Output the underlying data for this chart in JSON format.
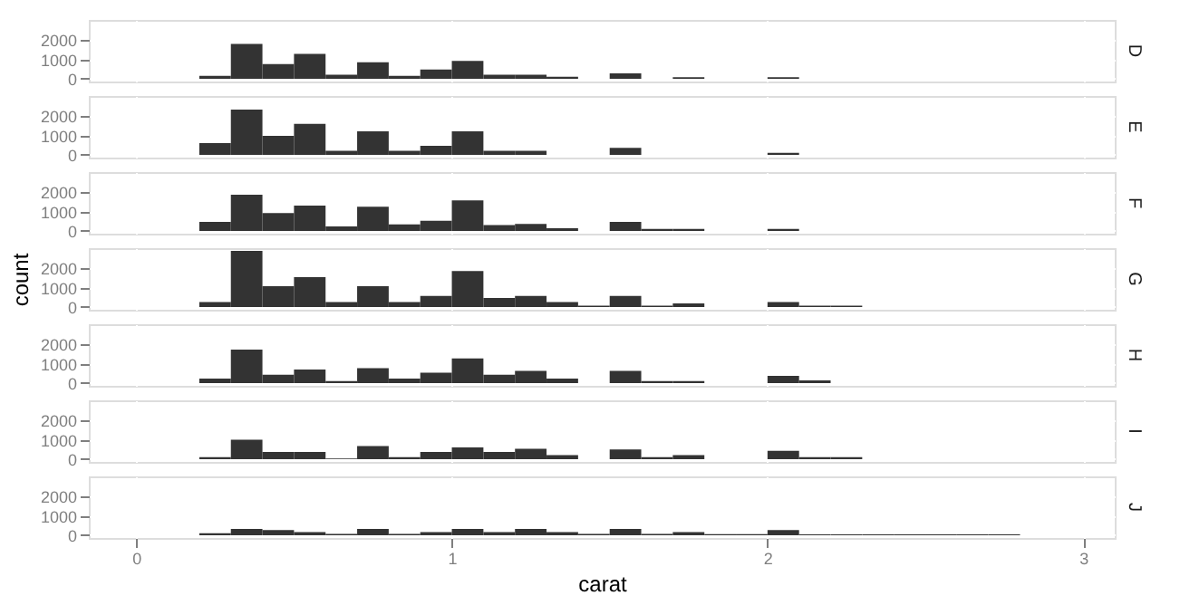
{
  "chart_data": [
    {
      "type": "histogram",
      "title": "D",
      "bins": [
        0.2,
        0.3,
        0.4,
        0.5,
        0.6,
        0.7,
        0.8,
        0.9,
        1.0,
        1.1,
        1.2,
        1.3,
        1.4,
        1.5,
        1.6,
        1.7,
        1.8,
        1.9,
        2.0,
        2.1,
        2.2,
        2.3,
        2.4,
        2.5,
        2.6,
        2.7,
        2.8
      ],
      "values": [
        150,
        1800,
        750,
        1280,
        200,
        850,
        150,
        480,
        920,
        200,
        200,
        100,
        0,
        280,
        0,
        80,
        0,
        0,
        80,
        0,
        0,
        0,
        0,
        0,
        0,
        0
      ],
      "color": "#333333",
      "xlim": [
        -0.15,
        3.1
      ],
      "xticks": [
        0,
        1,
        2,
        3
      ],
      "ylim": [
        -145,
        3035
      ],
      "yticks": [
        0,
        1000,
        2000
      ],
      "grid": true,
      "tick_labels": "y"
    },
    {
      "type": "histogram",
      "title": "E",
      "bins": [
        0.2,
        0.3,
        0.4,
        0.5,
        0.6,
        0.7,
        0.8,
        0.9,
        1.0,
        1.1,
        1.2,
        1.3,
        1.4,
        1.5,
        1.6,
        1.7,
        1.8,
        1.9,
        2.0,
        2.1,
        2.2,
        2.3,
        2.4,
        2.5,
        2.6,
        2.7,
        2.8
      ],
      "values": [
        600,
        2330,
        980,
        1600,
        200,
        1210,
        200,
        460,
        1210,
        200,
        200,
        0,
        0,
        360,
        0,
        0,
        0,
        0,
        100,
        0,
        0,
        0,
        0,
        0,
        0,
        0
      ],
      "color": "#333333",
      "xlim": [
        -0.15,
        3.1
      ],
      "xticks": [
        0,
        1,
        2,
        3
      ],
      "ylim": [
        -145,
        3035
      ],
      "yticks": [
        0,
        1000,
        2000
      ],
      "grid": true,
      "tick_labels": "y"
    },
    {
      "type": "histogram",
      "title": "F",
      "bins": [
        0.2,
        0.3,
        0.4,
        0.5,
        0.6,
        0.7,
        0.8,
        0.9,
        1.0,
        1.1,
        1.2,
        1.3,
        1.4,
        1.5,
        1.6,
        1.7,
        1.8,
        1.9,
        2.0,
        2.1,
        2.2,
        2.3,
        2.4,
        2.5,
        2.6,
        2.7,
        2.8
      ],
      "values": [
        460,
        1870,
        920,
        1310,
        230,
        1250,
        330,
        520,
        1570,
        300,
        360,
        130,
        0,
        460,
        100,
        100,
        0,
        0,
        100,
        0,
        0,
        0,
        0,
        0,
        0,
        0
      ],
      "color": "#333333",
      "xlim": [
        -0.15,
        3.1
      ],
      "xticks": [
        0,
        1,
        2,
        3
      ],
      "ylim": [
        -145,
        3035
      ],
      "yticks": [
        0,
        1000,
        2000
      ],
      "grid": true,
      "tick_labels": "y"
    },
    {
      "type": "histogram",
      "title": "G",
      "ylabel": "count",
      "bins": [
        0.2,
        0.3,
        0.4,
        0.5,
        0.6,
        0.7,
        0.8,
        0.9,
        1.0,
        1.1,
        1.2,
        1.3,
        1.4,
        1.5,
        1.6,
        1.7,
        1.8,
        1.9,
        2.0,
        2.1,
        2.2,
        2.3,
        2.4,
        2.5,
        2.6,
        2.7,
        2.8
      ],
      "values": [
        250,
        2890,
        1070,
        1540,
        250,
        1070,
        250,
        570,
        1860,
        460,
        570,
        250,
        70,
        570,
        70,
        180,
        0,
        0,
        250,
        70,
        70,
        0,
        0,
        0,
        0,
        0
      ],
      "color": "#333333",
      "xlim": [
        -0.15,
        3.1
      ],
      "xticks": [
        0,
        1,
        2,
        3
      ],
      "ylim": [
        -145,
        3035
      ],
      "yticks": [
        0,
        1000,
        2000
      ],
      "grid": true,
      "tick_labels": "y"
    },
    {
      "type": "histogram",
      "title": "H",
      "bins": [
        0.2,
        0.3,
        0.4,
        0.5,
        0.6,
        0.7,
        0.8,
        0.9,
        1.0,
        1.1,
        1.2,
        1.3,
        1.4,
        1.5,
        1.6,
        1.7,
        1.8,
        1.9,
        2.0,
        2.1,
        2.2,
        2.3,
        2.4,
        2.5,
        2.6,
        2.7,
        2.8
      ],
      "values": [
        230,
        1730,
        430,
        700,
        100,
        770,
        230,
        530,
        1270,
        430,
        630,
        230,
        0,
        630,
        100,
        100,
        0,
        0,
        370,
        130,
        0,
        0,
        0,
        0,
        0,
        0
      ],
      "color": "#333333",
      "xlim": [
        -0.15,
        3.1
      ],
      "xticks": [
        0,
        1,
        2,
        3
      ],
      "ylim": [
        -145,
        3035
      ],
      "yticks": [
        0,
        1000,
        2000
      ],
      "grid": true,
      "tick_labels": "y"
    },
    {
      "type": "histogram",
      "title": "I",
      "bins": [
        0.2,
        0.3,
        0.4,
        0.5,
        0.6,
        0.7,
        0.8,
        0.9,
        1.0,
        1.1,
        1.2,
        1.3,
        1.4,
        1.5,
        1.6,
        1.7,
        1.8,
        1.9,
        2.0,
        2.1,
        2.2,
        2.3,
        2.4,
        2.5,
        2.6,
        2.7,
        2.8
      ],
      "values": [
        100,
        1000,
        370,
        370,
        30,
        670,
        100,
        370,
        600,
        370,
        530,
        200,
        0,
        500,
        100,
        200,
        0,
        0,
        430,
        100,
        100,
        0,
        0,
        0,
        0,
        0
      ],
      "color": "#333333",
      "xlim": [
        -0.15,
        3.1
      ],
      "xticks": [
        0,
        1,
        2,
        3
      ],
      "ylim": [
        -145,
        3035
      ],
      "yticks": [
        0,
        1000,
        2000
      ],
      "grid": true,
      "tick_labels": "y"
    },
    {
      "type": "histogram",
      "title": "J",
      "xlabel": "carat",
      "bins": [
        0.2,
        0.3,
        0.4,
        0.5,
        0.6,
        0.7,
        0.8,
        0.9,
        1.0,
        1.1,
        1.2,
        1.3,
        1.4,
        1.5,
        1.6,
        1.7,
        1.8,
        1.9,
        2.0,
        2.1,
        2.2,
        2.3,
        2.4,
        2.5,
        2.6,
        2.7,
        2.8
      ],
      "values": [
        100,
        320,
        260,
        160,
        60,
        320,
        60,
        160,
        320,
        160,
        320,
        160,
        60,
        320,
        60,
        160,
        50,
        50,
        260,
        40,
        40,
        40,
        40,
        40,
        40,
        40
      ],
      "color": "#333333",
      "xlim": [
        -0.15,
        3.1
      ],
      "xticks": [
        0,
        1,
        2,
        3
      ],
      "ylim": [
        -145,
        3035
      ],
      "yticks": [
        0,
        1000,
        2000
      ],
      "grid": true
    }
  ]
}
